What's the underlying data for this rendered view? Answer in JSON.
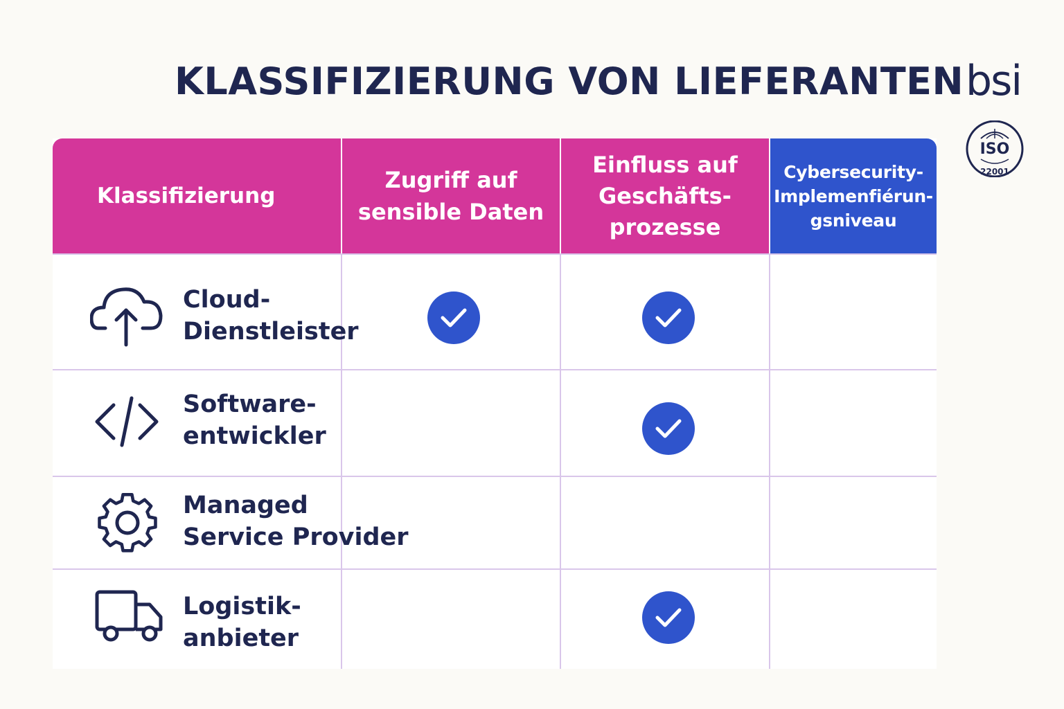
{
  "title": "KLASSIFIZIERUNG VON LIEFERANTEN",
  "brand": {
    "logo_text": "bsi",
    "iso_badge_top": "ISO",
    "iso_badge_bottom": "22001"
  },
  "colors": {
    "header_pink": "#d4369a",
    "header_blue": "#2f54cc",
    "text_navy": "#1f2650",
    "check_blue": "#2f54cc",
    "grid": "#d9c6ea"
  },
  "table": {
    "headers": [
      "Klassifizierung",
      "Zugriff auf\nsensible Daten",
      "Einfluss auf\nGeschäfts-\nprozesse",
      "Cybersecurity-\nImplemenfiérun-\ngsniveau"
    ],
    "rows": [
      {
        "icon": "cloud-upload-icon",
        "label": "Cloud-\nDienstleister",
        "checks": [
          true,
          true,
          false
        ]
      },
      {
        "icon": "code-icon",
        "label": "Software-\nentwickler",
        "checks": [
          false,
          true,
          false
        ]
      },
      {
        "icon": "gear-icon",
        "label": "Managed\nService Provider",
        "checks": [
          false,
          false,
          false
        ]
      },
      {
        "icon": "truck-icon",
        "label": "Logistik-\nanbieter",
        "checks": [
          false,
          true,
          false
        ]
      }
    ]
  }
}
